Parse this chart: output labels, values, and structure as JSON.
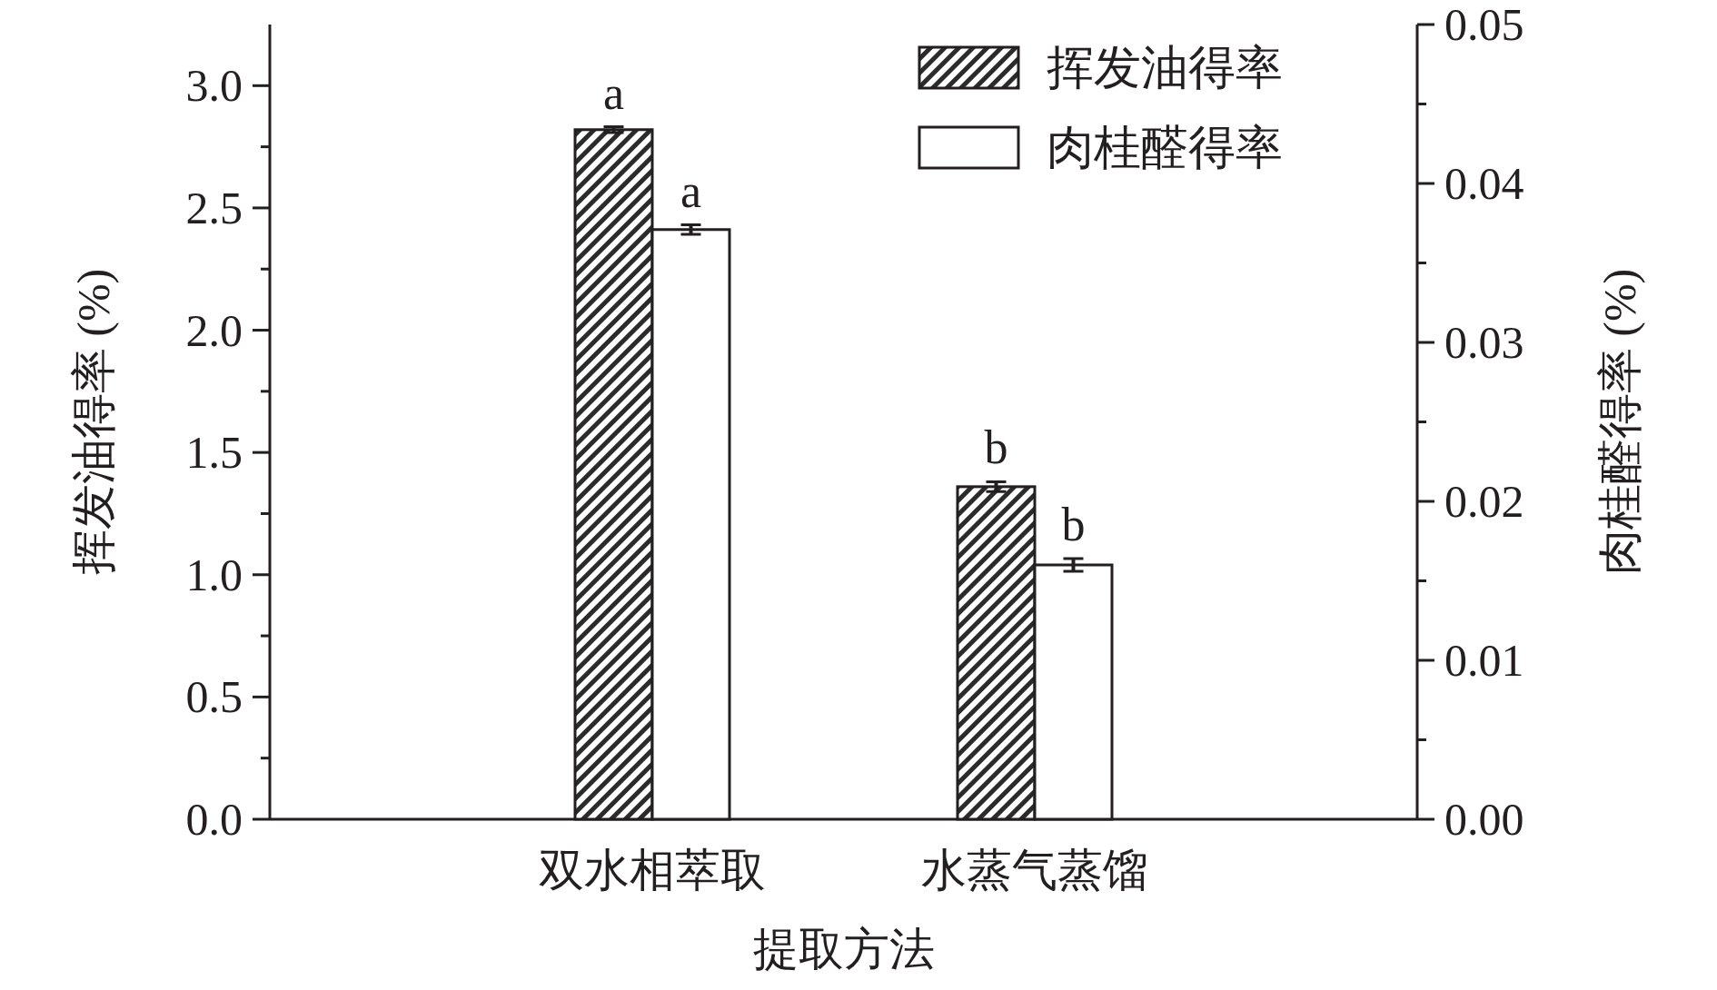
{
  "chart_data": {
    "type": "bar",
    "xlabel": "提取方法",
    "ylabel": "挥发油得率 (%)",
    "y2label": "肉桂醛得率 (%)",
    "categories": [
      "双水相萃取",
      "水蒸气蒸馏"
    ],
    "series": [
      {
        "name": "挥发油得率",
        "color": "#2b2b2b",
        "values": [
          2.82,
          1.36
        ],
        "errors": [
          0.012,
          0.02
        ],
        "value_labels": [
          "a",
          "b"
        ]
      },
      {
        "name": "肉桂醛得率",
        "color": "#ffffff",
        "axis": "y2",
        "values": [
          0.0371,
          0.016
        ],
        "errors": [
          0.0003,
          0.0004
        ],
        "value_labels": [
          "a",
          "b"
        ]
      }
    ],
    "ylim": [
      0,
      3.25
    ],
    "yticks": [
      {
        "value": 0,
        "label": "0.0"
      },
      {
        "value": 0.25,
        "label": null
      },
      {
        "value": 0.5,
        "label": "0.5"
      },
      {
        "value": 0.75,
        "label": null
      },
      {
        "value": 1,
        "label": "1.0"
      },
      {
        "value": 1.25,
        "label": null
      },
      {
        "value": 1.5,
        "label": "1.5"
      },
      {
        "value": 1.75,
        "label": null
      },
      {
        "value": 2,
        "label": "2.0"
      },
      {
        "value": 2.25,
        "label": null
      },
      {
        "value": 2.5,
        "label": "2.5"
      },
      {
        "value": 2.75,
        "label": null
      },
      {
        "value": 3,
        "label": "3.0"
      }
    ],
    "y2lim": [
      0,
      0.05
    ],
    "y2ticks": [
      {
        "value": 0,
        "label": "0.00"
      },
      {
        "value": 0.005,
        "label": null
      },
      {
        "value": 0.01,
        "label": "0.01"
      },
      {
        "value": 0.015,
        "label": null
      },
      {
        "value": 0.02,
        "label": "0.02"
      },
      {
        "value": 0.025,
        "label": null
      },
      {
        "value": 0.03,
        "label": "0.03"
      },
      {
        "value": 0.035,
        "label": null
      },
      {
        "value": 0.04,
        "label": "0.04"
      },
      {
        "value": 0.045,
        "label": null
      },
      {
        "value": 0.05,
        "label": "0.05"
      }
    ],
    "grid": false,
    "legend": "top right"
  }
}
